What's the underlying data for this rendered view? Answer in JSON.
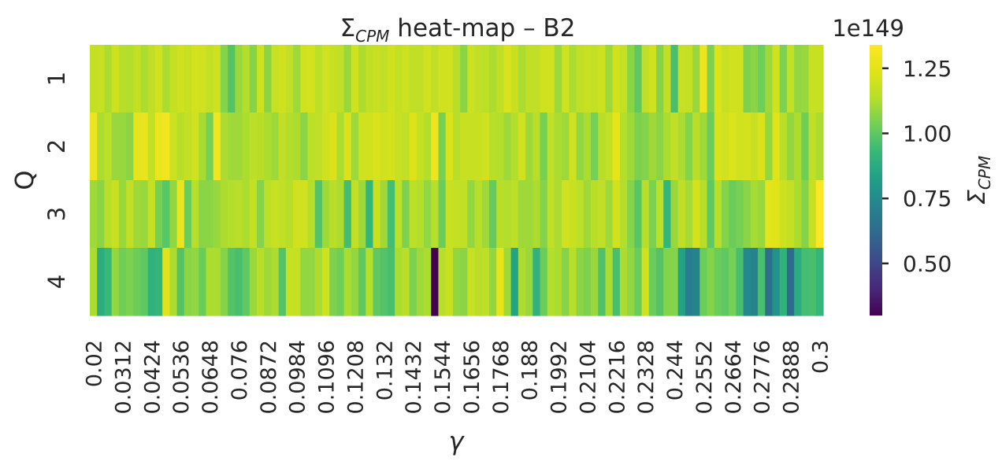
{
  "chart_data": {
    "type": "heatmap",
    "title": "Σ_CPM heat-map – B2",
    "title_main": "Σ",
    "title_sub": "CPM",
    "title_rest": " heat-map – B2",
    "xlabel": "γ",
    "ylabel": "Q",
    "colorbar_label": "Σ",
    "colorbar_label_sub": "CPM",
    "colorbar_exponent": "1e149",
    "colormap": "viridis",
    "vmin": 0.3,
    "vmax": 1.34,
    "colorbar_ticks": [
      "0.50",
      "0.75",
      "1.00",
      "1.25"
    ],
    "colorbar_tick_values": [
      0.5,
      0.75,
      1.0,
      1.25
    ],
    "rows": [
      "1",
      "2",
      "3",
      "4"
    ],
    "columns_count": 101,
    "x_range": [
      0.02,
      0.3
    ],
    "x_step": 0.0028,
    "xtick_labels": [
      "0.02",
      "0.0312",
      "0.0424",
      "0.0536",
      "0.0648",
      "0.076",
      "0.0872",
      "0.0984",
      "0.1096",
      "0.1208",
      "0.132",
      "0.1432",
      "0.1544",
      "0.1656",
      "0.1768",
      "0.188",
      "0.1992",
      "0.2104",
      "0.2216",
      "0.2328",
      "0.244",
      "0.2552",
      "0.2664",
      "0.2776",
      "0.2888",
      "0.3"
    ],
    "xtick_every": 4,
    "values": [
      [
        1.17,
        1.18,
        1.12,
        1.19,
        1.14,
        1.13,
        1.17,
        1.12,
        1.16,
        1.2,
        1.12,
        1.17,
        1.2,
        1.18,
        1.21,
        1.2,
        1.17,
        1.19,
        1.06,
        0.98,
        1.09,
        1.13,
        1.06,
        1.19,
        1.07,
        1.18,
        1.2,
        1.16,
        1.1,
        1.2,
        1.21,
        1.15,
        1.2,
        1.18,
        1.16,
        1.09,
        1.2,
        1.12,
        1.16,
        1.18,
        1.16,
        1.2,
        1.17,
        1.19,
        1.16,
        1.16,
        1.2,
        1.16,
        1.2,
        1.2,
        1.14,
        1.07,
        1.19,
        1.16,
        1.15,
        1.12,
        1.16,
        1.22,
        1.18,
        1.12,
        1.16,
        1.16,
        1.2,
        1.2,
        1.1,
        1.2,
        1.12,
        1.16,
        1.18,
        1.17,
        1.19,
        1.1,
        1.2,
        1.17,
        1.07,
        1.0,
        1.16,
        1.2,
        1.06,
        1.16,
        0.96,
        1.18,
        1.17,
        1.09,
        1.29,
        1.05,
        1.23,
        1.18,
        1.2,
        1.2,
        1.05,
        1.07,
        1.03,
        1.1,
        1.2,
        1.05,
        1.17,
        1.08,
        1.09,
        1.18,
        1.18
      ],
      [
        1.28,
        1.12,
        1.15,
        1.09,
        1.09,
        1.07,
        1.26,
        1.27,
        1.17,
        1.28,
        1.3,
        1.19,
        1.14,
        1.17,
        1.2,
        1.11,
        1.04,
        1.3,
        1.12,
        1.1,
        1.1,
        1.12,
        1.15,
        1.14,
        1.12,
        1.1,
        1.16,
        1.13,
        1.12,
        1.07,
        1.15,
        1.16,
        1.2,
        1.22,
        1.12,
        1.22,
        1.1,
        1.2,
        1.2,
        1.22,
        1.2,
        1.21,
        1.18,
        1.16,
        1.23,
        1.17,
        1.13,
        1.29,
        1.04,
        1.22,
        1.14,
        1.18,
        1.18,
        1.18,
        1.2,
        1.14,
        1.13,
        1.1,
        1.13,
        1.2,
        1.1,
        1.14,
        1.04,
        1.16,
        1.12,
        1.1,
        1.2,
        1.08,
        1.12,
        1.04,
        1.14,
        1.17,
        1.26,
        1.13,
        1.1,
        1.05,
        1.06,
        1.1,
        1.07,
        1.12,
        1.16,
        1.12,
        1.06,
        1.14,
        1.1,
        1.02,
        1.22,
        1.2,
        1.23,
        1.2,
        1.21,
        1.18,
        1.22,
        1.08,
        1.24,
        1.14,
        1.08,
        1.12,
        1.03,
        1.16,
        1.12
      ],
      [
        1.1,
        1.07,
        1.14,
        1.18,
        1.09,
        1.16,
        1.1,
        1.09,
        1.17,
        1.04,
        0.99,
        1.08,
        1.28,
        1.02,
        1.14,
        1.07,
        1.07,
        1.09,
        1.12,
        1.13,
        1.14,
        1.12,
        1.17,
        1.06,
        1.15,
        1.18,
        1.16,
        1.14,
        1.2,
        1.2,
        1.13,
        0.98,
        1.1,
        1.14,
        1.12,
        0.95,
        1.16,
        1.1,
        0.92,
        1.18,
        1.1,
        0.95,
        1.15,
        1.05,
        1.15,
        1.13,
        1.08,
        1.14,
        1.02,
        1.18,
        1.17,
        1.16,
        1.08,
        1.14,
        1.1,
        1.01,
        1.14,
        1.13,
        1.15,
        1.1,
        1.1,
        1.12,
        1.06,
        1.16,
        1.12,
        1.2,
        1.18,
        1.15,
        1.1,
        1.14,
        1.16,
        1.1,
        1.2,
        1.13,
        1.06,
        0.99,
        1.14,
        1.05,
        1.15,
        0.92,
        1.09,
        1.16,
        1.11,
        1.21,
        1.14,
        1.0,
        1.14,
        1.06,
        1.02,
        1.04,
        1.07,
        1.11,
        1.09,
        1.25,
        1.24,
        1.19,
        1.17,
        1.12,
        1.06,
        1.18,
        1.34
      ],
      [
        1.12,
        0.88,
        0.93,
        1.08,
        1.03,
        1.05,
        1.02,
        1.0,
        0.9,
        0.91,
        1.24,
        1.12,
        0.98,
        1.07,
        1.08,
        1.02,
        1.12,
        1.12,
        1.06,
        0.98,
        0.96,
        1.0,
        1.09,
        1.14,
        1.1,
        1.12,
        0.98,
        1.18,
        1.17,
        1.08,
        1.08,
        1.12,
        1.2,
        1.05,
        1.03,
        1.12,
        1.08,
        1.0,
        1.13,
        1.0,
        0.98,
        0.96,
        1.12,
        1.14,
        1.05,
        1.1,
        1.12,
        0.3,
        1.14,
        1.18,
        1.08,
        1.07,
        1.18,
        1.14,
        1.15,
        1.08,
        1.26,
        1.1,
        0.84,
        1.12,
        1.09,
        0.9,
        1.02,
        1.13,
        1.12,
        1.06,
        1.14,
        1.07,
        1.05,
        1.09,
        0.97,
        1.12,
        0.96,
        1.12,
        1.08,
        1.02,
        1.2,
        1.02,
        0.98,
        1.06,
        1.06,
        0.84,
        0.7,
        0.72,
        1.02,
        1.06,
        1.02,
        1.0,
        1.04,
        0.96,
        0.74,
        0.72,
        0.96,
        0.64,
        0.78,
        0.9,
        0.62,
        0.88,
        0.95,
        0.96,
        0.92
      ]
    ]
  }
}
